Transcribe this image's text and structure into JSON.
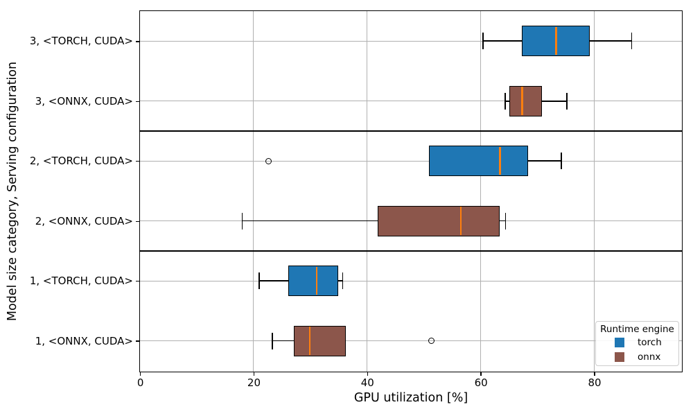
{
  "chart_data": {
    "type": "boxplot",
    "orientation": "horizontal",
    "title": "",
    "xlabel": "GPU utilization [%]",
    "ylabel": "Model size category, Serving configuration",
    "xlim": [
      0,
      95.3
    ],
    "x_tick_values": [
      0,
      20,
      40,
      60,
      80
    ],
    "x_tick_labels": [
      "0",
      "20",
      "40",
      "60",
      "80"
    ],
    "grid": true,
    "engine_colors": {
      "torch": "#1f77b4",
      "onnx": "#8c564b"
    },
    "median_color": "#ff7f0e",
    "grid_color": "#b0b0b0",
    "legend": {
      "title": "Runtime engine",
      "position": "lower right",
      "entries": [
        {
          "label": "torch",
          "color": "#1f77b4"
        },
        {
          "label": "onnx",
          "color": "#8c564b"
        }
      ]
    },
    "rows": [
      {
        "label": "3, <TORCH, CUDA>",
        "engine": "torch",
        "whisker_low": 60.4,
        "q1": 67.2,
        "median": 73.3,
        "q3": 79.2,
        "whisker_high": 86.6,
        "outliers": []
      },
      {
        "label": "3, <ONNX, CUDA>",
        "engine": "onnx",
        "whisker_low": 64.3,
        "q1": 65.1,
        "median": 67.3,
        "q3": 70.8,
        "whisker_high": 75.2,
        "outliers": []
      },
      {
        "label": "2, <TORCH, CUDA>",
        "engine": "torch",
        "whisker_low": 50.9,
        "q1": 50.9,
        "median": 63.4,
        "q3": 68.3,
        "whisker_high": 74.2,
        "outliers": [
          22.6
        ]
      },
      {
        "label": "2, <ONNX, CUDA>",
        "engine": "onnx",
        "whisker_low": 18.0,
        "q1": 41.9,
        "median": 56.5,
        "q3": 63.4,
        "whisker_high": 64.4,
        "outliers": []
      },
      {
        "label": "1, <TORCH, CUDA>",
        "engine": "torch",
        "whisker_low": 21.0,
        "q1": 26.1,
        "median": 31.1,
        "q3": 34.9,
        "whisker_high": 35.7,
        "outliers": []
      },
      {
        "label": "1, <ONNX, CUDA>",
        "engine": "onnx",
        "whisker_low": 23.3,
        "q1": 27.1,
        "median": 29.9,
        "q3": 36.2,
        "whisker_high": 36.2,
        "outliers": [
          51.3
        ]
      }
    ],
    "separators_after_rows": [
      1,
      3
    ]
  }
}
